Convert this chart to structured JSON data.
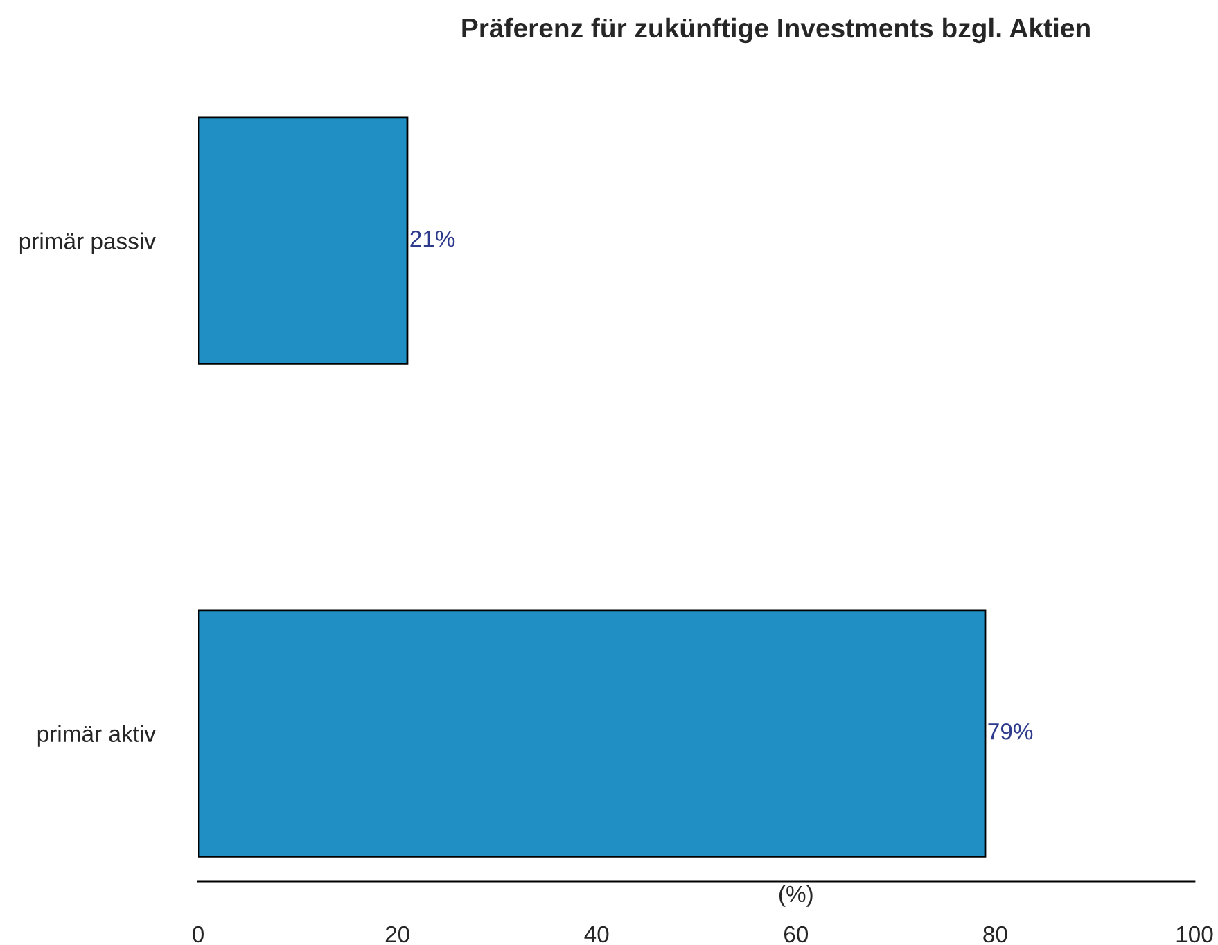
{
  "chart_data": {
    "type": "bar",
    "orientation": "horizontal",
    "title": "Präferenz für zukünftige Investments bzgl. Aktien",
    "xlabel": "(%)",
    "categories": [
      "primär passiv",
      "primär aktiv"
    ],
    "values": [
      21,
      79
    ],
    "value_labels": [
      "21%",
      "79%"
    ],
    "color": "#1f8fc4",
    "xlim": [
      0,
      100
    ],
    "xticks": [
      0,
      20,
      40,
      60,
      80,
      100
    ],
    "grid": false,
    "legend": false
  }
}
